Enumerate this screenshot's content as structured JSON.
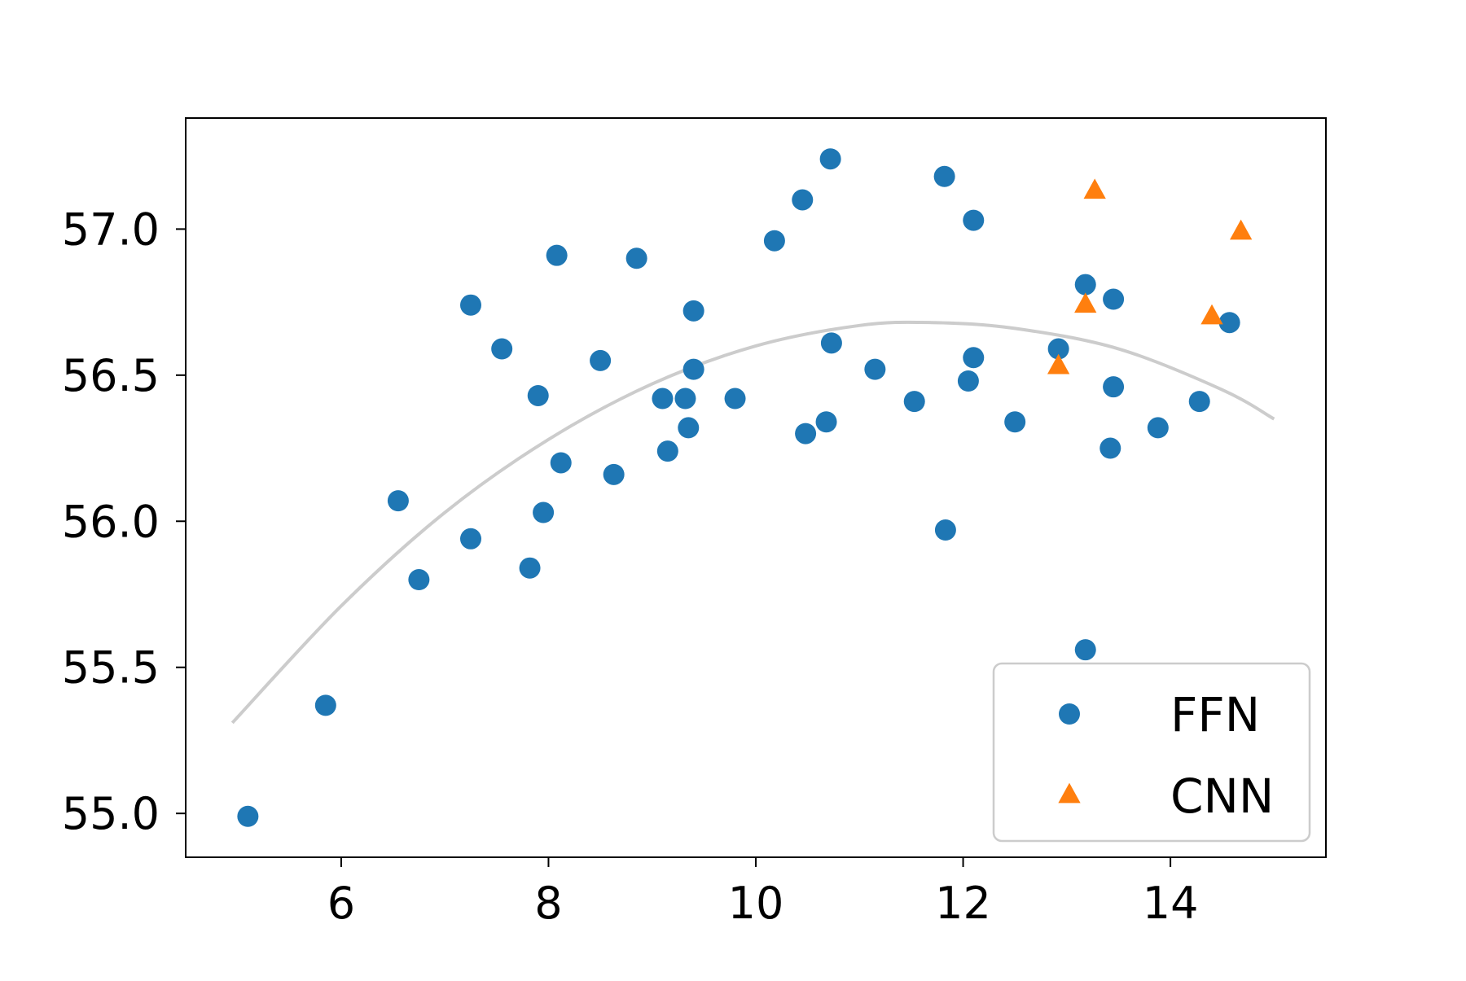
{
  "chart_data": {
    "type": "scatter",
    "title": "",
    "xlabel": "",
    "ylabel": "",
    "xlim": [
      4.5,
      15.5
    ],
    "ylim": [
      54.85,
      57.38
    ],
    "xticks": [
      6,
      8,
      10,
      12,
      14
    ],
    "yticks": [
      55.0,
      55.5,
      56.0,
      56.5,
      57.0
    ],
    "xtick_labels": [
      "6",
      "8",
      "10",
      "12",
      "14"
    ],
    "ytick_labels": [
      "55.0",
      "55.5",
      "56.0",
      "56.5",
      "57.0"
    ],
    "grid": false,
    "legend_position": "lower-right",
    "series": [
      {
        "name": "FFN",
        "marker": "circle",
        "color": "#1f77b4",
        "points": [
          [
            5.1,
            54.99
          ],
          [
            5.85,
            55.37
          ],
          [
            6.55,
            56.07
          ],
          [
            6.75,
            55.8
          ],
          [
            7.25,
            55.94
          ],
          [
            7.25,
            56.74
          ],
          [
            7.55,
            56.59
          ],
          [
            7.82,
            55.84
          ],
          [
            7.9,
            56.43
          ],
          [
            7.95,
            56.03
          ],
          [
            8.08,
            56.91
          ],
          [
            8.12,
            56.2
          ],
          [
            8.5,
            56.55
          ],
          [
            8.63,
            56.16
          ],
          [
            8.85,
            56.9
          ],
          [
            9.1,
            56.42
          ],
          [
            9.15,
            56.24
          ],
          [
            9.32,
            56.42
          ],
          [
            9.35,
            56.32
          ],
          [
            9.4,
            56.72
          ],
          [
            9.4,
            56.52
          ],
          [
            9.8,
            56.42
          ],
          [
            10.18,
            56.96
          ],
          [
            10.45,
            57.1
          ],
          [
            10.48,
            56.3
          ],
          [
            10.68,
            56.34
          ],
          [
            10.72,
            57.24
          ],
          [
            10.73,
            56.61
          ],
          [
            11.15,
            56.52
          ],
          [
            11.53,
            56.41
          ],
          [
            11.82,
            57.18
          ],
          [
            11.83,
            55.97
          ],
          [
            12.05,
            56.48
          ],
          [
            12.1,
            57.03
          ],
          [
            12.1,
            56.56
          ],
          [
            12.5,
            56.34
          ],
          [
            12.92,
            56.59
          ],
          [
            13.18,
            56.81
          ],
          [
            13.18,
            55.56
          ],
          [
            13.42,
            56.25
          ],
          [
            13.45,
            56.76
          ],
          [
            13.45,
            56.46
          ],
          [
            13.88,
            56.32
          ],
          [
            14.28,
            56.41
          ],
          [
            14.57,
            56.68
          ]
        ]
      },
      {
        "name": "CNN",
        "marker": "triangle",
        "color": "#ff7f0e",
        "points": [
          [
            12.92,
            56.53
          ],
          [
            13.18,
            56.74
          ],
          [
            13.27,
            57.13
          ],
          [
            14.4,
            56.7
          ],
          [
            14.68,
            56.99
          ]
        ]
      }
    ],
    "fit_curve": {
      "color": "#cccccc",
      "x_range": [
        4.95,
        15.0
      ],
      "points": [
        [
          4.95,
          55.31
        ],
        [
          6.0,
          55.71
        ],
        [
          7.0,
          56.03
        ],
        [
          8.0,
          56.28
        ],
        [
          9.0,
          56.47
        ],
        [
          10.0,
          56.6
        ],
        [
          11.0,
          56.67
        ],
        [
          11.7,
          56.68
        ],
        [
          12.5,
          56.66
        ],
        [
          13.5,
          56.59
        ],
        [
          14.5,
          56.45
        ],
        [
          15.0,
          56.35
        ]
      ]
    }
  }
}
